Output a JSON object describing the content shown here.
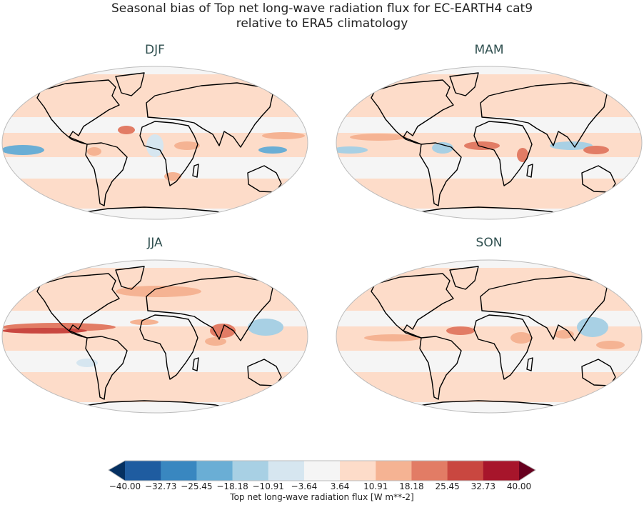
{
  "title_line1": "Seasonal bias of Top net long-wave radiation flux for EC-EARTH4 cat9",
  "title_line2": "relative to ERA5 climatology",
  "panels": [
    {
      "label": "DJF"
    },
    {
      "label": "MAM"
    },
    {
      "label": "JJA"
    },
    {
      "label": "SON"
    }
  ],
  "colorbar": {
    "label": "Top net long-wave radiation flux [W m**-2]",
    "ticks": [
      "−40.00",
      "−32.73",
      "−25.45",
      "−18.18",
      "−10.91",
      "−3.64",
      "3.64",
      "10.91",
      "18.18",
      "25.45",
      "32.73",
      "40.00"
    ],
    "colors": [
      "#1f5ca0",
      "#3987c0",
      "#6aaed5",
      "#a8d0e4",
      "#d6e6f0",
      "#f5f5f5",
      "#fddcc9",
      "#f5b393",
      "#e27c65",
      "#c94740",
      "#a7152b"
    ],
    "extend_min_color": "#053061",
    "extend_max_color": "#67001f",
    "extend": "both"
  }
}
